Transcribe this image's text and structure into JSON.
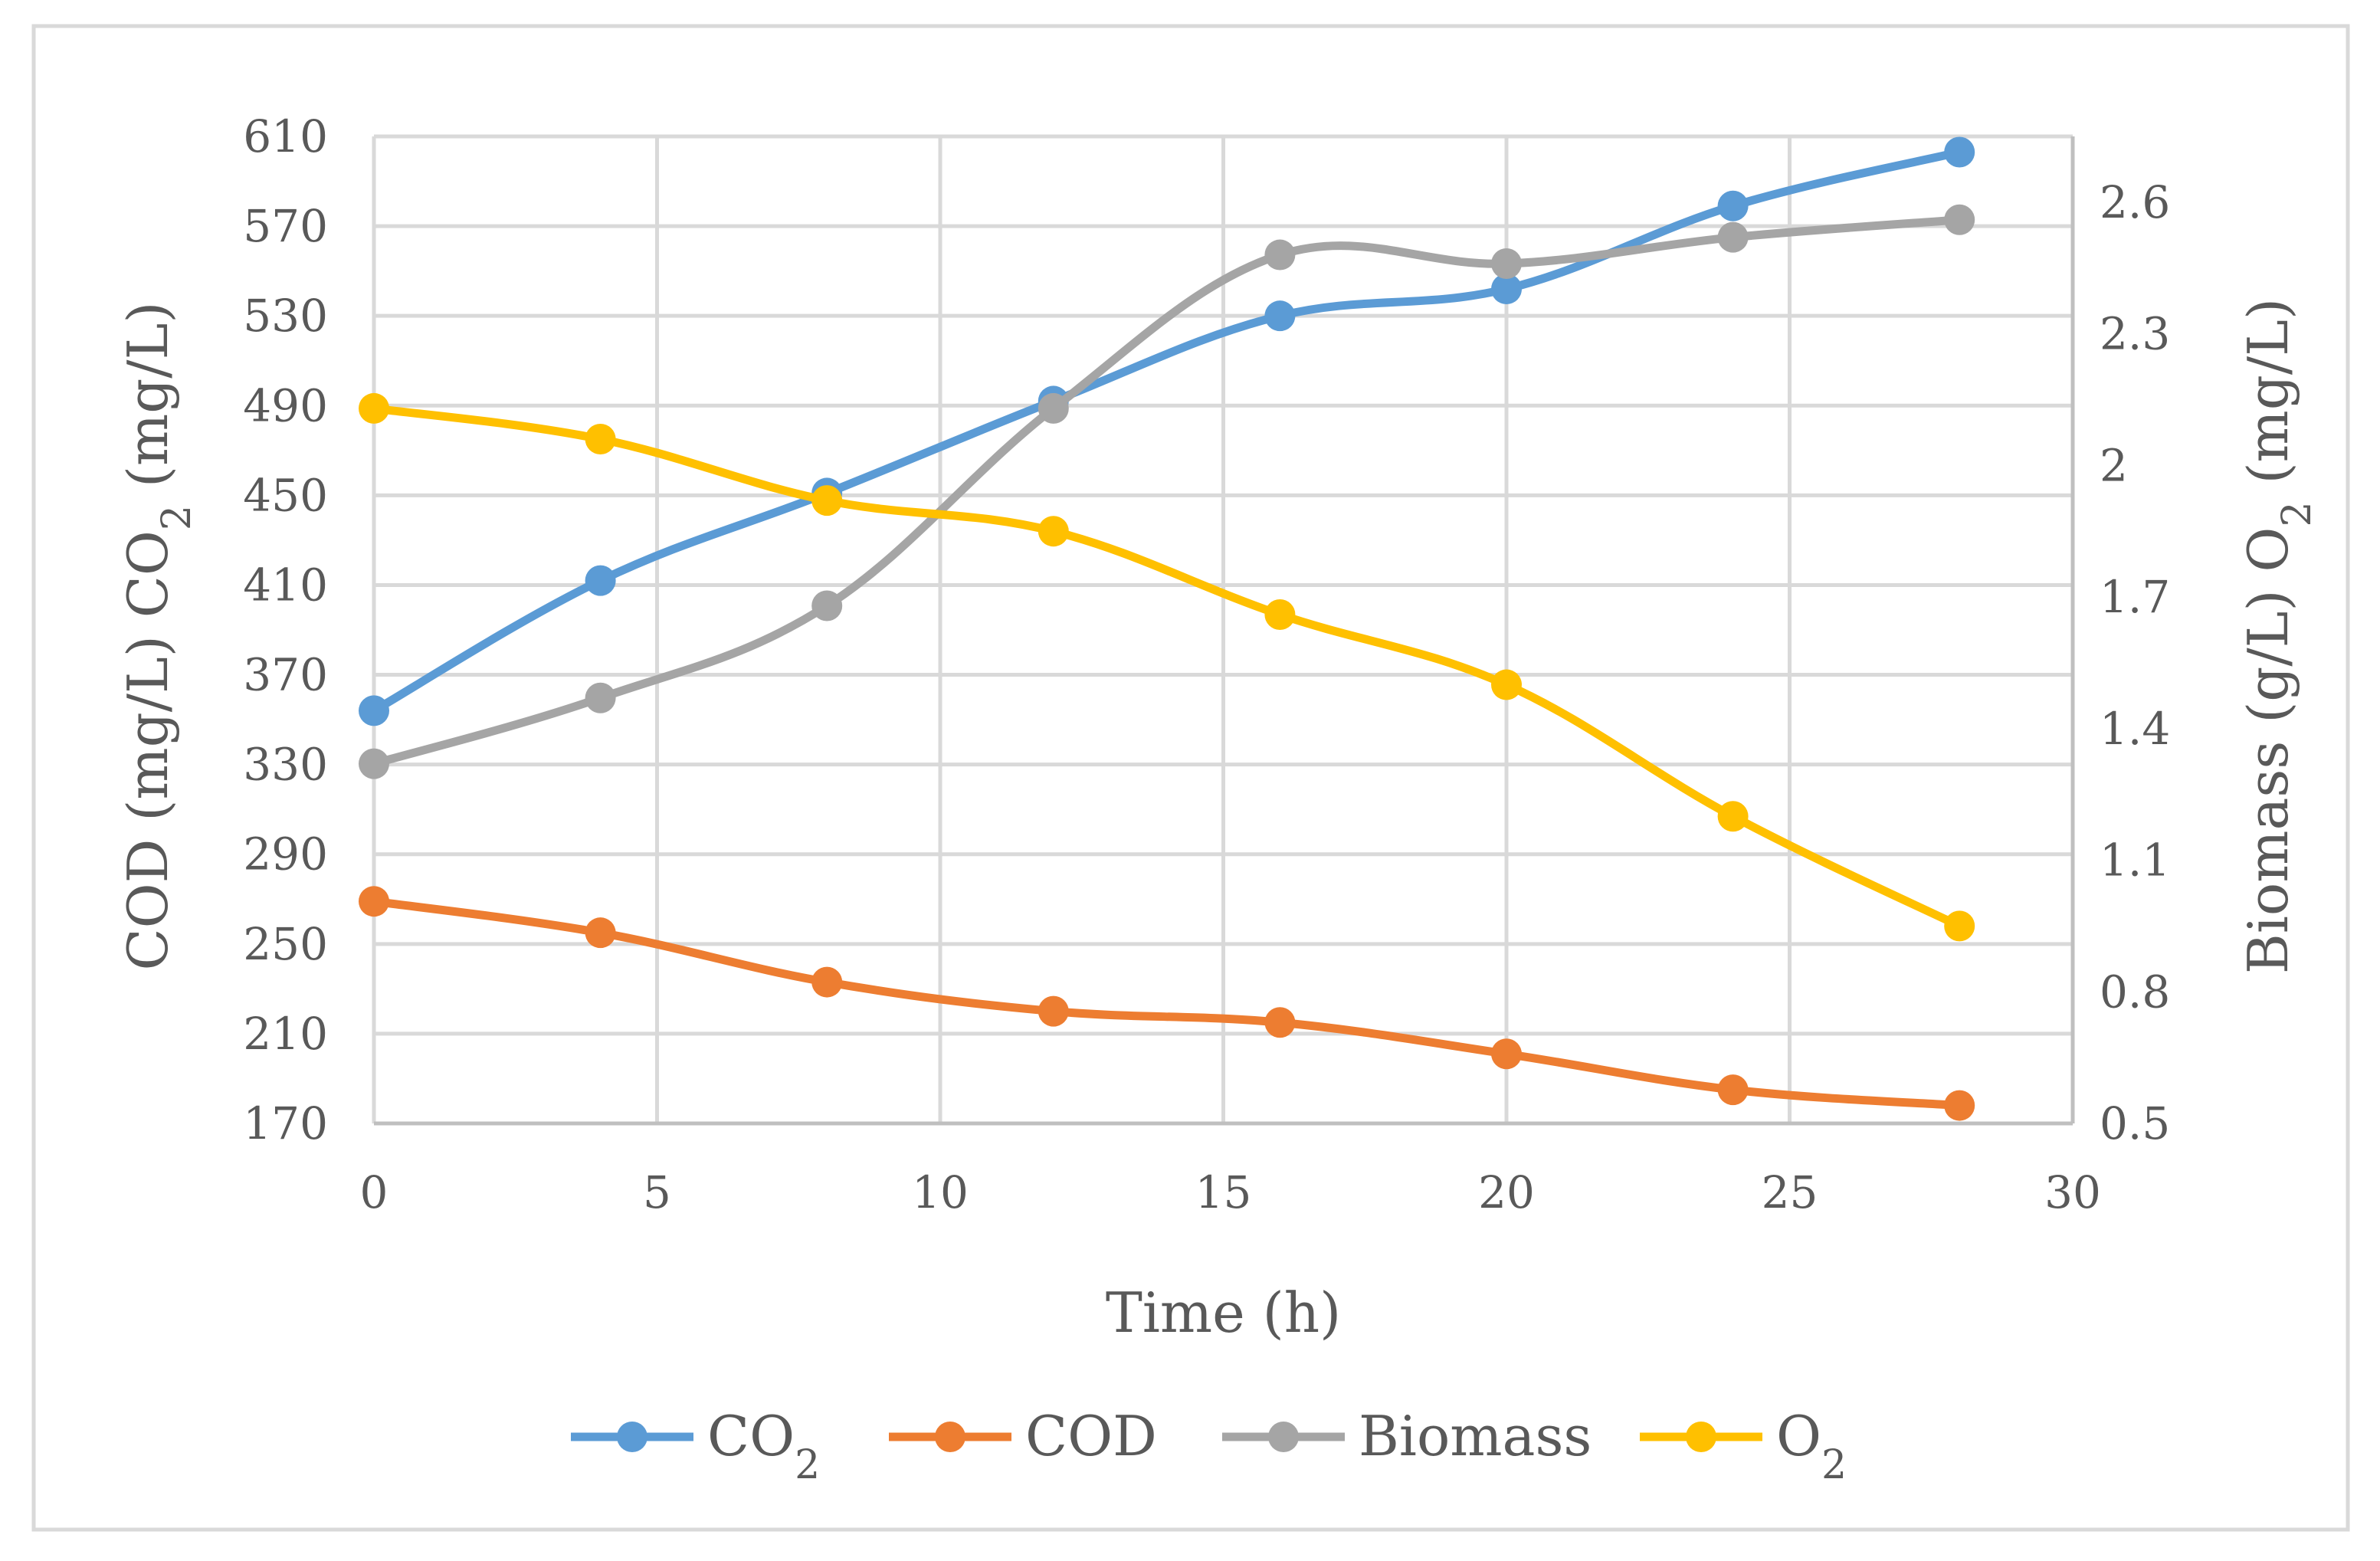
{
  "chart_data": {
    "type": "line",
    "title": "",
    "xlabel": "Time (h)",
    "ylabel_left": {
      "parts": [
        {
          "t": "COD (mg/L) CO"
        },
        {
          "t": "2",
          "sub": true
        },
        {
          "t": " (mg/L)"
        }
      ]
    },
    "ylabel_right": {
      "parts": [
        {
          "t": "Biomass (g/L) O"
        },
        {
          "t": "2",
          "sub": true
        },
        {
          "t": " (mg/L)"
        }
      ]
    },
    "x_ticks": [
      "0",
      "5",
      "10",
      "15",
      "20",
      "25",
      "30"
    ],
    "x_range": [
      0,
      30
    ],
    "y_left_ticks": [
      "170",
      "210",
      "250",
      "290",
      "330",
      "370",
      "410",
      "450",
      "490",
      "530",
      "570",
      "610"
    ],
    "y_left_range": [
      170,
      610
    ],
    "y_right_ticks": [
      "0.5",
      "0.8",
      "1.1",
      "1.4",
      "1.7",
      "2",
      "2.3",
      "2.6"
    ],
    "y_right_range": [
      0.5,
      2.75
    ],
    "grid": true,
    "legend_position": "bottom",
    "x": [
      0,
      4,
      8,
      12,
      16,
      20,
      24,
      28
    ],
    "series": [
      {
        "key": "co2",
        "name": "CO2",
        "legend_parts": [
          {
            "t": "CO"
          },
          {
            "t": "2",
            "sub": true
          }
        ],
        "axis": "left",
        "color": "#5b9bd5",
        "values": [
          354,
          412,
          451,
          492,
          530,
          542,
          579,
          603
        ]
      },
      {
        "key": "cod",
        "name": "COD",
        "legend_parts": [
          {
            "t": "COD"
          }
        ],
        "axis": "left",
        "color": "#ed7d31",
        "values": [
          269,
          255,
          233,
          220,
          215,
          201,
          185,
          178
        ]
      },
      {
        "key": "biomass",
        "name": "Biomass",
        "legend_parts": [
          {
            "t": "Biomass"
          }
        ],
        "axis": "right",
        "color": "#a5a5a5",
        "values": [
          1.32,
          1.47,
          1.68,
          2.13,
          2.48,
          2.46,
          2.52,
          2.56
        ]
      },
      {
        "key": "o2",
        "name": "O2",
        "legend_parts": [
          {
            "t": "O"
          },
          {
            "t": "2",
            "sub": true
          }
        ],
        "axis": "right",
        "color": "#ffc000",
        "values": [
          2.13,
          2.06,
          1.92,
          1.85,
          1.66,
          1.5,
          1.2,
          0.95
        ]
      }
    ]
  }
}
